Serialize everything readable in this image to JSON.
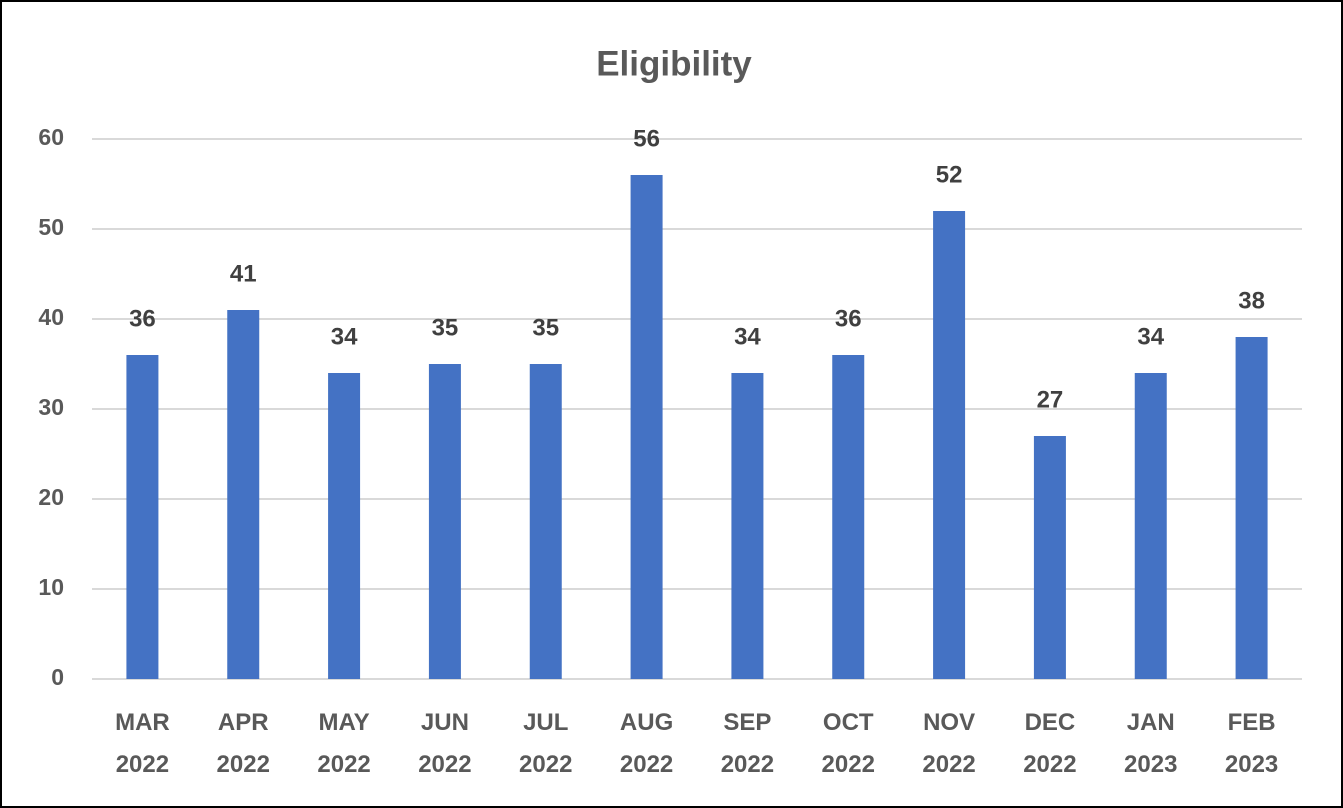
{
  "chart_data": {
    "type": "bar",
    "title": "Eligibility",
    "categories": [
      "MAR 2022",
      "APR 2022",
      "MAY 2022",
      "JUN 2022",
      "JUL 2022",
      "AUG 2022",
      "SEP 2022",
      "OCT 2022",
      "NOV 2022",
      "DEC 2022",
      "JAN 2023",
      "FEB 2023"
    ],
    "values": [
      36,
      41,
      34,
      35,
      35,
      56,
      34,
      36,
      52,
      27,
      34,
      38
    ],
    "color": "#4472c4",
    "ylim": [
      0,
      60
    ],
    "yticks": [
      0,
      10,
      20,
      30,
      40,
      50,
      60
    ],
    "grid": true
  }
}
